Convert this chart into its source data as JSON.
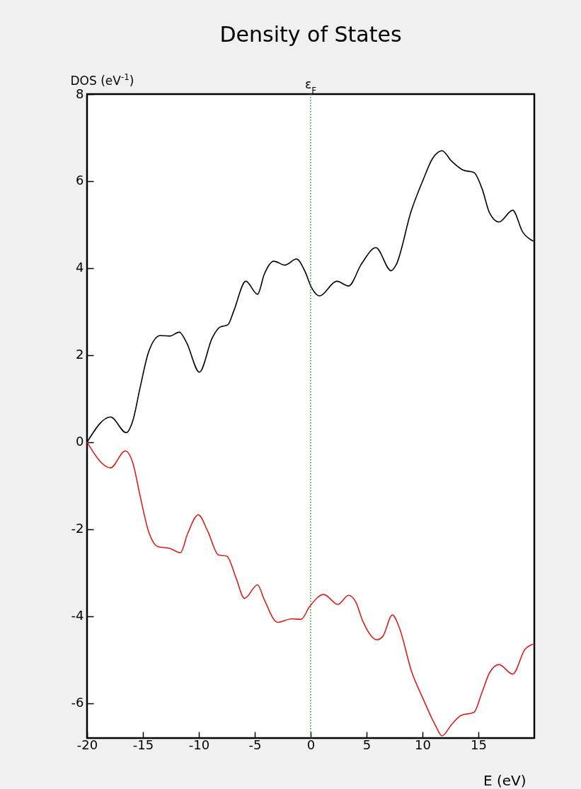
{
  "chart_data": {
    "type": "line",
    "title": "Density of States",
    "xlabel": "E (eV)",
    "ylabel": "DOS (eV$^{-1}$)",
    "xlim": [
      -20,
      20
    ],
    "ylim": [
      -6.8,
      8
    ],
    "xticks": [
      -20,
      -15,
      -10,
      -5,
      0,
      5,
      10,
      15
    ],
    "yticks": [
      -6,
      -4,
      -2,
      0,
      2,
      4,
      6,
      8
    ],
    "grid": false,
    "marker": "none",
    "line_style": "solid",
    "ref_lines": [
      {
        "axis": "x",
        "value": 0,
        "label": "ε$_{F}$",
        "color": "#339933",
        "line_style": "dotted"
      }
    ],
    "series": [
      {
        "color": "#000000",
        "x": [
          -20,
          -17.9,
          -16.5,
          -15.9,
          -15.25,
          -14.5,
          -13.45,
          -12.6,
          -11.75,
          -11.1,
          -9.95,
          -8.8,
          -8.15,
          -7.4,
          -6.9,
          -5.8,
          -4.75,
          -4.15,
          -3.3,
          -2.3,
          -1.27,
          -0.5,
          0.1,
          0.8,
          2.33,
          3.39,
          4.55,
          5.83,
          7.2,
          7.63,
          9.0,
          10.06,
          10.9,
          11.75,
          12.6,
          13.66,
          14.6,
          15.35,
          16.0,
          16.84,
          18.07,
          18.96,
          19.9
        ],
        "values": [
          0,
          0.58,
          0.22,
          0.5,
          1.26,
          2.07,
          2.45,
          2.44,
          2.53,
          2.29,
          1.61,
          2.4,
          2.64,
          2.7,
          3.0,
          3.7,
          3.4,
          3.86,
          4.16,
          4.07,
          4.21,
          3.92,
          3.54,
          3.36,
          3.7,
          3.59,
          4.1,
          4.47,
          3.94,
          4.07,
          5.32,
          6.03,
          6.52,
          6.7,
          6.46,
          6.25,
          6.2,
          5.81,
          5.27,
          5.06,
          5.33,
          4.83,
          4.62
        ]
      },
      {
        "color": "#d42020",
        "x": [
          -20,
          -17.9,
          -16.58,
          -15.9,
          -15.25,
          -14.5,
          -13.66,
          -12.6,
          -11.65,
          -11.0,
          -10.05,
          -9.2,
          -8.25,
          -7.5,
          -6.66,
          -5.92,
          -4.75,
          -4.15,
          -2.96,
          -1.69,
          -0.85,
          -0.1,
          1.17,
          2.44,
          3.39,
          4.03,
          4.66,
          5.93,
          6.46,
          7.31,
          7.94,
          9.0,
          10.06,
          11.12,
          11.75,
          12.6,
          13.45,
          14.6,
          15.35,
          16.0,
          16.84,
          18.07,
          19.17,
          19.9
        ],
        "values": [
          0,
          -0.59,
          -0.2,
          -0.48,
          -1.24,
          -2.05,
          -2.4,
          -2.44,
          -2.54,
          -2.1,
          -1.67,
          -2.05,
          -2.59,
          -2.62,
          -3.13,
          -3.59,
          -3.28,
          -3.62,
          -4.14,
          -4.06,
          -4.07,
          -3.78,
          -3.5,
          -3.73,
          -3.52,
          -3.67,
          -4.11,
          -4.54,
          -4.46,
          -3.97,
          -4.27,
          -5.25,
          -5.9,
          -6.49,
          -6.75,
          -6.49,
          -6.28,
          -6.21,
          -5.73,
          -5.3,
          -5.11,
          -5.33,
          -4.76,
          -4.64
        ]
      }
    ]
  }
}
